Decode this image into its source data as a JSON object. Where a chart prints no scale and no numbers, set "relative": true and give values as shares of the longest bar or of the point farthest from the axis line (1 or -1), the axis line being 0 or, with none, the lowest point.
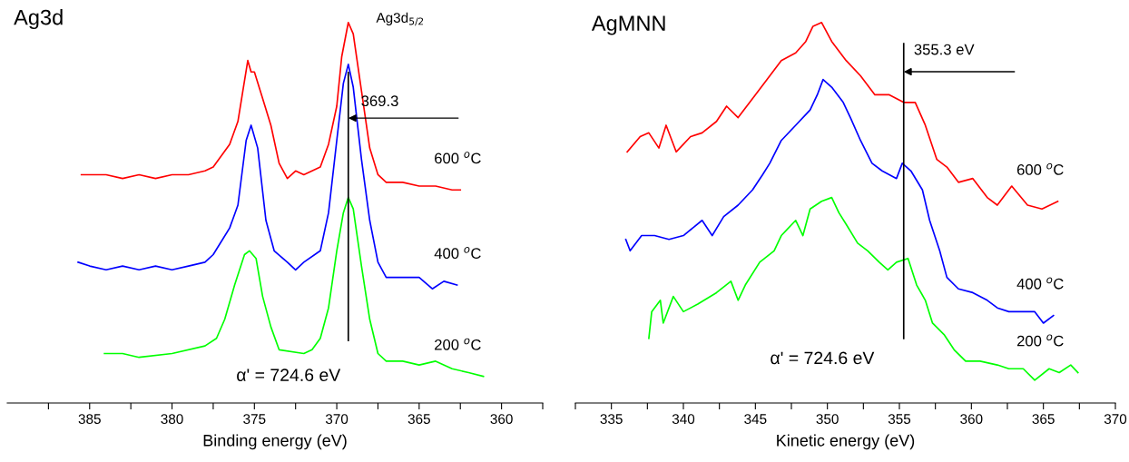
{
  "chart_data": [
    {
      "type": "line",
      "title": "Ag3d",
      "xlabel": "Binding energy (eV)",
      "relative": true,
      "tick_labels": "x",
      "grid": false,
      "legend": false,
      "xlim": [
        390,
        357.5
      ],
      "xticks": [
        {
          "value": 387.5,
          "label": null
        },
        385,
        {
          "value": 382.5,
          "label": null
        },
        380,
        {
          "value": 377.5,
          "label": null
        },
        375,
        {
          "value": 372.5,
          "label": null
        },
        370,
        {
          "value": 367.5,
          "label": null
        },
        365,
        {
          "value": 362.5,
          "label": null
        },
        360,
        {
          "value": 357.5,
          "label": null
        }
      ],
      "series": [
        {
          "name": "600 $^{o}$C",
          "color": "#ff0000",
          "x": [
            385.5,
            384,
            383,
            382,
            381,
            380,
            379,
            378,
            377.5,
            377,
            376.5,
            376,
            375.7,
            375.4,
            375.2,
            375,
            374.5,
            374,
            373.5,
            373,
            372.5,
            372,
            371.5,
            371,
            370.5,
            370,
            369.7,
            369.3,
            369,
            368.5,
            368,
            367.5,
            367,
            366,
            365,
            364,
            363,
            362.5
          ],
          "values": [
            0.6,
            0.6,
            0.59,
            0.6,
            0.59,
            0.6,
            0.6,
            0.61,
            0.62,
            0.65,
            0.68,
            0.74,
            0.82,
            0.9,
            0.87,
            0.87,
            0.8,
            0.73,
            0.63,
            0.59,
            0.61,
            0.6,
            0.61,
            0.62,
            0.68,
            0.78,
            0.91,
            1.0,
            0.97,
            0.82,
            0.67,
            0.6,
            0.58,
            0.58,
            0.57,
            0.57,
            0.56,
            0.56
          ]
        },
        {
          "name": "400 $^{o}$C",
          "color": "#0000ff",
          "x": [
            385.7,
            385,
            384,
            383,
            382,
            381,
            380,
            379,
            378,
            377.5,
            376.5,
            376,
            375.5,
            375.2,
            374.8,
            374.3,
            373.8,
            373,
            372.5,
            372,
            371,
            370.5,
            370,
            369.6,
            369.3,
            369,
            368.5,
            368,
            367.5,
            367,
            366,
            365,
            364.2,
            363.5,
            362.7
          ],
          "values": [
            0.37,
            0.36,
            0.35,
            0.36,
            0.35,
            0.36,
            0.35,
            0.36,
            0.37,
            0.39,
            0.46,
            0.52,
            0.69,
            0.73,
            0.67,
            0.48,
            0.4,
            0.37,
            0.35,
            0.37,
            0.4,
            0.5,
            0.69,
            0.84,
            0.89,
            0.83,
            0.64,
            0.48,
            0.37,
            0.33,
            0.33,
            0.33,
            0.3,
            0.32,
            0.31
          ]
        },
        {
          "name": "200 $^{o}$C",
          "color": "#00ff00",
          "x": [
            384.1,
            383,
            382,
            380,
            378,
            377.3,
            376.8,
            376.2,
            375.6,
            375.3,
            374.9,
            374.5,
            374,
            373.5,
            372,
            371.5,
            371,
            370.5,
            370,
            369.6,
            369.3,
            369,
            368.5,
            368,
            367.5,
            367,
            366,
            365,
            364,
            363,
            362,
            361.1
          ],
          "values": [
            0.13,
            0.13,
            0.12,
            0.13,
            0.15,
            0.17,
            0.22,
            0.31,
            0.39,
            0.4,
            0.38,
            0.28,
            0.2,
            0.14,
            0.13,
            0.14,
            0.17,
            0.25,
            0.4,
            0.5,
            0.54,
            0.51,
            0.36,
            0.22,
            0.13,
            0.11,
            0.11,
            0.1,
            0.11,
            0.09,
            0.08,
            0.07
          ]
        }
      ],
      "ref_lines": [
        {
          "axis": "x",
          "value": 369.3,
          "label": "369.3",
          "color": "#000000"
        }
      ],
      "annotations": [
        "Ag3d$_{5/2}$",
        "α' = 724.6 eV"
      ]
    },
    {
      "type": "line",
      "title": "AgMNN",
      "xlabel": "Kinetic energy (eV)",
      "relative": true,
      "tick_labels": "x",
      "grid": false,
      "legend": false,
      "xlim": [
        332.5,
        370
      ],
      "xticks": [
        {
          "value": 332.5,
          "label": null
        },
        335,
        {
          "value": 337.5,
          "label": null
        },
        340,
        {
          "value": 342.5,
          "label": null
        },
        345,
        {
          "value": 347.5,
          "label": null
        },
        350,
        {
          "value": 352.5,
          "label": null
        },
        355,
        {
          "value": 357.5,
          "label": null
        },
        360,
        {
          "value": 362.5,
          "label": null
        },
        365,
        {
          "value": 367.5,
          "label": null
        },
        370
      ],
      "series": [
        {
          "name": "600 $^{o}$C",
          "color": "#ff0000",
          "x": [
            336.1,
            337.0,
            337.6,
            338.3,
            338.8,
            339.5,
            340.5,
            341.3,
            342.3,
            343.0,
            343.8,
            345.0,
            345.8,
            346.8,
            347.8,
            348.5,
            349.0,
            349.6,
            350.3,
            351.3,
            352.3,
            353.3,
            354.3,
            355.3,
            356.1,
            356.8,
            357.6,
            358.3,
            359.1,
            360.1,
            361.1,
            361.8,
            362.8,
            363.9,
            364.9,
            366.0
          ],
          "values": [
            0.66,
            0.7,
            0.71,
            0.67,
            0.73,
            0.66,
            0.7,
            0.71,
            0.74,
            0.78,
            0.75,
            0.81,
            0.85,
            0.9,
            0.92,
            0.95,
            0.99,
            1.0,
            0.95,
            0.9,
            0.86,
            0.81,
            0.81,
            0.79,
            0.79,
            0.73,
            0.64,
            0.62,
            0.58,
            0.59,
            0.54,
            0.52,
            0.57,
            0.52,
            0.51,
            0.53
          ]
        },
        {
          "name": "400 $^{o}$C",
          "color": "#0000ff",
          "x": [
            336.0,
            336.3,
            337.1,
            338.0,
            339.0,
            340.0,
            341.3,
            342.0,
            342.8,
            343.8,
            344.8,
            345.5,
            346.0,
            346.8,
            347.8,
            348.8,
            349.3,
            349.7,
            350.3,
            351.1,
            351.6,
            352.3,
            353.1,
            353.8,
            354.8,
            355.2,
            355.8,
            356.6,
            357.1,
            357.8,
            358.3,
            359.1,
            360.1,
            361.1,
            361.8,
            362.6,
            363.6,
            364.4,
            365.0,
            365.7
          ],
          "values": [
            0.43,
            0.4,
            0.44,
            0.44,
            0.43,
            0.44,
            0.48,
            0.44,
            0.49,
            0.52,
            0.56,
            0.6,
            0.63,
            0.69,
            0.73,
            0.77,
            0.81,
            0.85,
            0.83,
            0.79,
            0.75,
            0.69,
            0.63,
            0.61,
            0.59,
            0.63,
            0.61,
            0.56,
            0.48,
            0.4,
            0.33,
            0.3,
            0.29,
            0.27,
            0.25,
            0.24,
            0.24,
            0.24,
            0.21,
            0.23
          ]
        },
        {
          "name": "200 $^{o}$C",
          "color": "#00ff00",
          "x": [
            337.6,
            337.8,
            338.4,
            338.6,
            339.3,
            340.0,
            341.0,
            342.3,
            343.3,
            343.8,
            344.3,
            345.3,
            346.3,
            346.8,
            347.8,
            348.3,
            348.8,
            349.6,
            350.3,
            350.8,
            351.3,
            352.1,
            352.8,
            353.6,
            354.2,
            354.8,
            355.6,
            356.2,
            356.8,
            357.3,
            358.1,
            358.8,
            359.6,
            360.6,
            361.8,
            362.6,
            363.6,
            364.4,
            365.4,
            366.1,
            366.9,
            367.4
          ],
          "values": [
            0.17,
            0.24,
            0.27,
            0.21,
            0.28,
            0.24,
            0.26,
            0.29,
            0.32,
            0.27,
            0.31,
            0.37,
            0.4,
            0.44,
            0.48,
            0.44,
            0.51,
            0.53,
            0.54,
            0.5,
            0.47,
            0.42,
            0.4,
            0.37,
            0.35,
            0.37,
            0.38,
            0.31,
            0.27,
            0.21,
            0.18,
            0.14,
            0.11,
            0.11,
            0.1,
            0.09,
            0.09,
            0.06,
            0.09,
            0.08,
            0.1,
            0.08
          ]
        }
      ],
      "ref_lines": [
        {
          "axis": "x",
          "value": 355.3,
          "label": "355.3 eV",
          "color": "#000000"
        }
      ],
      "annotations": [
        "α' = 724.6 eV"
      ]
    }
  ]
}
